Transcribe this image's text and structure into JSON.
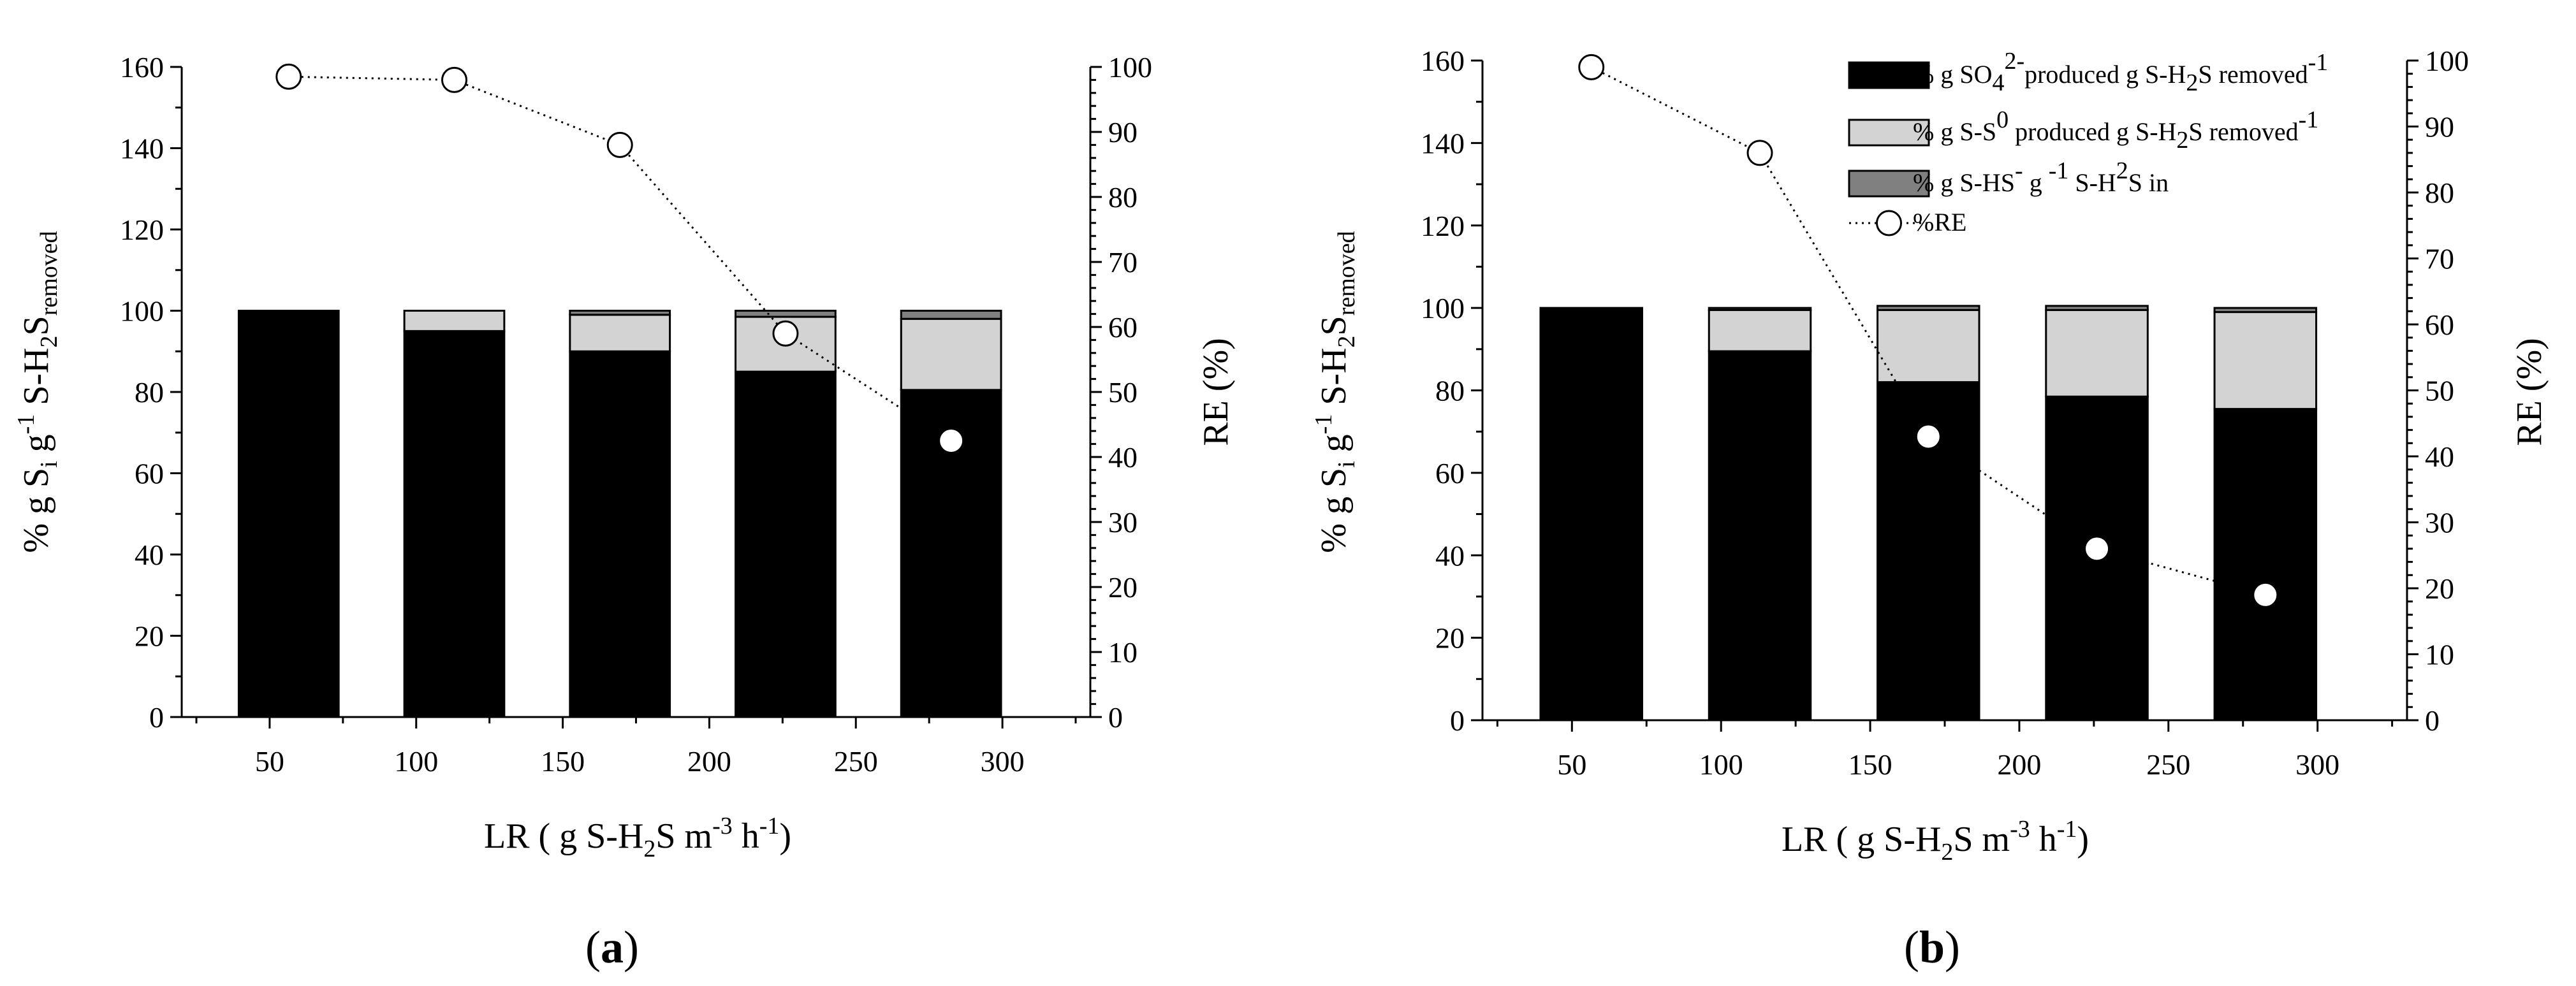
{
  "chart_data": [
    {
      "type": "bar",
      "stacked": true,
      "panel_label": {
        "open": "(",
        "letter": "a",
        "close": ")"
      },
      "categories": [
        56.5,
        113,
        169.5,
        226,
        282.5
      ],
      "xlabel": "LR ( g S-H2S m-3 h-1)",
      "xlabel_parts": {
        "pre": "LR ( g S-H",
        "sub": "2",
        "mid": "S m",
        "sup1": "-3",
        "mid2": " h",
        "sup2": "-1",
        "post": ")"
      },
      "xticks": [
        50,
        100,
        150,
        200,
        250,
        300
      ],
      "xlim": [
        20,
        330
      ],
      "ylabel": "% g Si g-1 S-H2S removed",
      "ylabel_parts": {
        "a": "% g S",
        "s1": "i",
        "b": " g",
        "sup": "-1",
        "c": " S-H",
        "s2": "2",
        "d": "S",
        "s3": "removed"
      },
      "ylim": [
        0,
        160
      ],
      "yticks": [
        0,
        20,
        40,
        60,
        80,
        100,
        120,
        140,
        160
      ],
      "y2label": "RE (%)",
      "y2lim": [
        0,
        100
      ],
      "y2ticks": [
        0,
        10,
        20,
        30,
        40,
        50,
        60,
        70,
        80,
        90,
        100
      ],
      "series": [
        {
          "name": "% g SO42- produced g S-H2S removed-1",
          "color": "#000000",
          "values": [
            100,
            95,
            90,
            85,
            80.5
          ]
        },
        {
          "name": "% g S-S0 produced g S-H2S removed-1",
          "color": "#d3d3d3",
          "values": [
            0,
            5,
            9,
            13.5,
            17.5
          ]
        },
        {
          "name": "% g S-HS- g-1 S-H2S in",
          "color": "#808080",
          "values": [
            0,
            0,
            1,
            1.5,
            2
          ]
        }
      ],
      "line_series": {
        "name": "%RE",
        "axis": "right",
        "values": [
          98.5,
          98,
          88,
          59,
          42.5
        ]
      },
      "legend": null
    },
    {
      "type": "bar",
      "stacked": true,
      "panel_label": {
        "open": "(",
        "letter": "b",
        "close": ")"
      },
      "categories": [
        56.5,
        113,
        169.5,
        226,
        282.5
      ],
      "xlabel": "LR ( g S-H2S m-3 h-1)",
      "xlabel_parts": {
        "pre": "LR ( g S-H",
        "sub": "2",
        "mid": "S m",
        "sup1": "-3",
        "mid2": " h",
        "sup2": "-1",
        "post": ")"
      },
      "xticks": [
        50,
        100,
        150,
        200,
        250,
        300
      ],
      "xlim": [
        20,
        330
      ],
      "ylabel": "% g Si g-1 S-H2S removed",
      "ylabel_parts": {
        "a": "% g S",
        "s1": "i",
        "b": " g",
        "sup": "-1",
        "c": " S-H",
        "s2": "2",
        "d": "S",
        "s3": "removed"
      },
      "ylim": [
        0,
        160
      ],
      "yticks": [
        0,
        20,
        40,
        60,
        80,
        100,
        120,
        140,
        160
      ],
      "y2label": "RE (%)",
      "y2lim": [
        0,
        100
      ],
      "y2ticks": [
        0,
        10,
        20,
        30,
        40,
        50,
        60,
        70,
        80,
        90,
        100
      ],
      "series": [
        {
          "name": "% g SO42- produced g S-H2S removed-1",
          "color": "#000000",
          "values": [
            100,
            89.5,
            82,
            78.5,
            75.5
          ]
        },
        {
          "name": "% g S-S0 produced g S-H2S removed-1",
          "color": "#d3d3d3",
          "values": [
            0,
            10,
            17.5,
            21,
            23.5
          ]
        },
        {
          "name": "% g S-HS- g-1 S-H2S in",
          "color": "#808080",
          "values": [
            0,
            0.5,
            1,
            1,
            1
          ]
        }
      ],
      "line_series": {
        "name": "%RE",
        "axis": "right",
        "values": [
          99,
          86,
          43,
          26,
          19
        ]
      },
      "legend": {
        "placement": "top-right",
        "entries": [
          {
            "parts": {
              "a": "% g SO",
              "s1": "4",
              "sup1": "2-",
              "b": "produced g S-H",
              "s2": "2",
              "c": "S removed",
              "sup2": "-1"
            }
          },
          {
            "parts": {
              "a": "% g S-S",
              "sup1": "0",
              "b": " produced g S-H",
              "s2": "2",
              "c": "S removed",
              "sup2": "-1"
            }
          },
          {
            "parts": {
              "a": "% g S-HS",
              "sup1": "-",
              "b": " g ",
              "sup2": "-1",
              "c": " S-H",
              "sup3": "2",
              "d": "S in"
            }
          },
          {
            "parts": {
              "a": "%RE"
            }
          }
        ]
      }
    }
  ]
}
